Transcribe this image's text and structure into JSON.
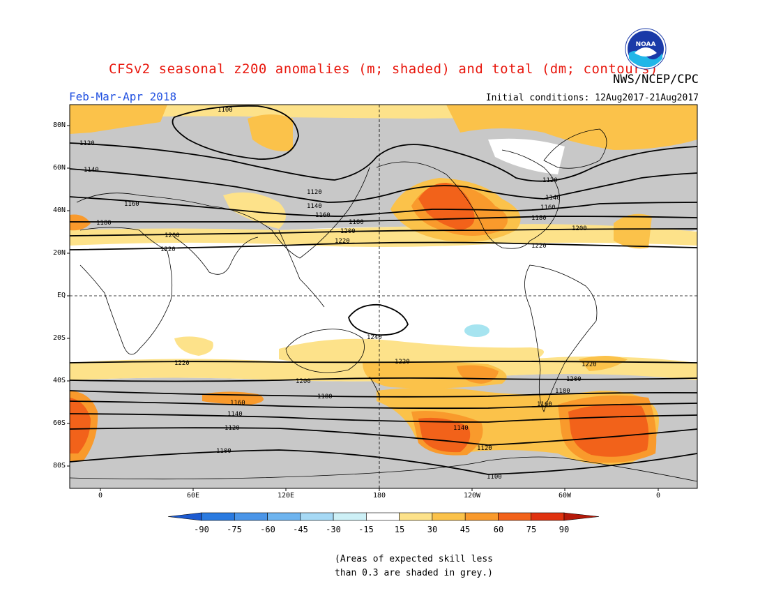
{
  "title": "CFSv2 seasonal z200 anomalies (m; shaded) and total (dm; contours)",
  "agency": "NWS/NCEP/CPC",
  "logo_text": "NOAA",
  "period": "Feb-Mar-Apr 2018",
  "initial_conditions": "Initial conditions: 12Aug2017-21Aug2017",
  "lat_labels": [
    "80N",
    "60N",
    "40N",
    "20N",
    "EQ",
    "20S",
    "40S",
    "60S",
    "80S"
  ],
  "lon_labels": [
    "0",
    "60E",
    "120E",
    "180",
    "120W",
    "60W",
    "0"
  ],
  "colorbar": {
    "ticks": [
      "-90",
      "-75",
      "-60",
      "-45",
      "-30",
      "-15",
      "15",
      "30",
      "45",
      "60",
      "75",
      "90"
    ],
    "colors": [
      "#1c5ad0",
      "#2a7ae0",
      "#4a95e8",
      "#6eb4ef",
      "#a6d9f5",
      "#cdf0f6",
      "#ffffff",
      "#fde28a",
      "#fbc24a",
      "#f99a2c",
      "#f2621a",
      "#e0320f",
      "#b51a0a"
    ]
  },
  "note_line1": "(Areas of expected skill less",
  "note_line2": "than 0.3 are shaded in grey.)",
  "contour_labels": [
    "1100",
    "1120",
    "1140",
    "1160",
    "1180",
    "1200",
    "1220",
    "1240"
  ],
  "map_colors": {
    "grey": "#c8c8c8",
    "yellow": "#fde28a",
    "orange": "#fbc24a",
    "dark_orange": "#f99a2c",
    "red_orange": "#f2621a",
    "light_blue": "#a6e4f0"
  }
}
